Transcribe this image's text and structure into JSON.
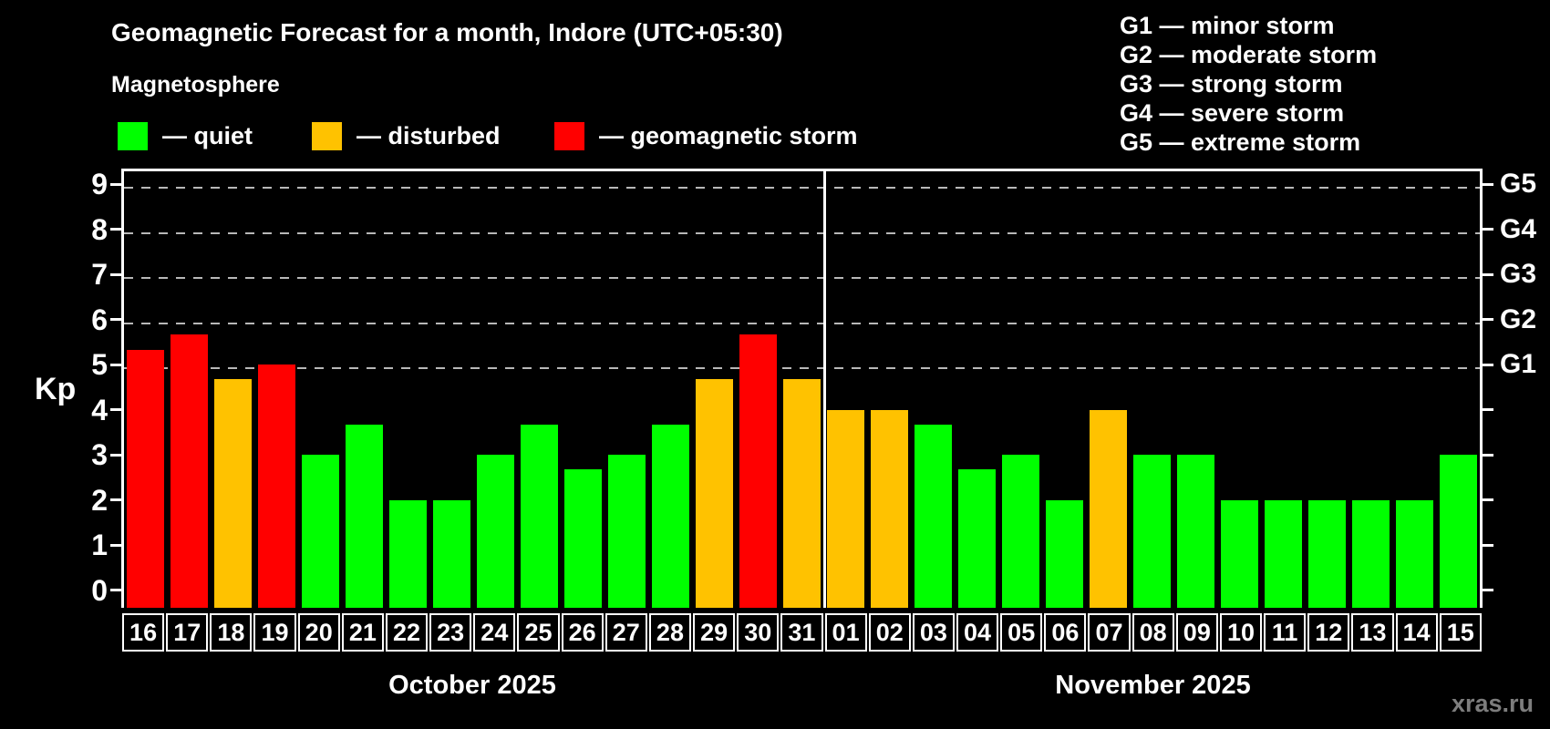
{
  "page": {
    "title": "Geomagnetic Forecast for a month, Indore (UTC+05:30)",
    "subtitle": "Magnetosphere",
    "watermark": "xras.ru"
  },
  "colors": {
    "quiet": "#00ff00",
    "disturbed": "#ffc200",
    "storm": "#ff0000",
    "axis": "#ffffff",
    "grid": "#b8b8b8",
    "background": "#000000"
  },
  "legend": [
    {
      "key": "quiet",
      "label": "— quiet"
    },
    {
      "key": "disturbed",
      "label": "— disturbed"
    },
    {
      "key": "storm",
      "label": "— geomagnetic storm"
    }
  ],
  "g_scale_legend": [
    "G1 — minor storm",
    "G2 — moderate storm",
    "G3 — strong storm",
    "G4 — severe storm",
    "G5 — extreme storm"
  ],
  "chart_data": {
    "type": "bar",
    "title": "Geomagnetic Forecast for a month, Indore (UTC+05:30)",
    "subtitle": "Magnetosphere",
    "ylabel": "Kp",
    "xlabel": "",
    "ylim": [
      0,
      9
    ],
    "yticks": [
      0,
      1,
      2,
      3,
      4,
      5,
      6,
      7,
      8,
      9
    ],
    "gridlines_at": [
      5,
      6,
      7,
      8,
      9
    ],
    "grid": "dashed, only at storm levels G1-G5",
    "legend_position": "top",
    "right_axis_labels": [
      {
        "label": "G5",
        "value": 9
      },
      {
        "label": "G4",
        "value": 8
      },
      {
        "label": "G3",
        "value": 7
      },
      {
        "label": "G2",
        "value": 6
      },
      {
        "label": "G1",
        "value": 5
      }
    ],
    "months": [
      {
        "label": "October 2025",
        "num_days": 16
      },
      {
        "label": "November 2025",
        "num_days": 15
      }
    ],
    "categories": [
      "16",
      "17",
      "18",
      "19",
      "20",
      "21",
      "22",
      "23",
      "24",
      "25",
      "26",
      "27",
      "28",
      "29",
      "30",
      "31",
      "01",
      "02",
      "03",
      "04",
      "05",
      "06",
      "07",
      "08",
      "09",
      "10",
      "11",
      "12",
      "13",
      "14",
      "15"
    ],
    "values": [
      5.33,
      5.67,
      4.67,
      5.0,
      3.0,
      3.67,
      2.0,
      2.0,
      3.0,
      3.67,
      2.67,
      3.0,
      3.67,
      4.67,
      5.67,
      4.67,
      4.0,
      4.0,
      3.67,
      2.67,
      3.0,
      2.0,
      4.0,
      3.0,
      3.0,
      2.0,
      2.0,
      2.0,
      2.0,
      2.0,
      3.0
    ],
    "statuses": [
      "storm",
      "storm",
      "disturbed",
      "storm",
      "quiet",
      "quiet",
      "quiet",
      "quiet",
      "quiet",
      "quiet",
      "quiet",
      "quiet",
      "quiet",
      "disturbed",
      "storm",
      "disturbed",
      "disturbed",
      "disturbed",
      "quiet",
      "quiet",
      "quiet",
      "quiet",
      "disturbed",
      "quiet",
      "quiet",
      "quiet",
      "quiet",
      "quiet",
      "quiet",
      "quiet",
      "quiet"
    ]
  }
}
